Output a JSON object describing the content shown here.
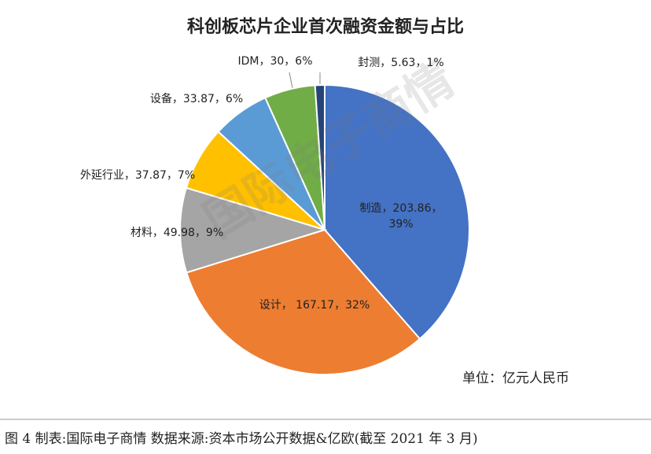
{
  "chart_data": {
    "type": "pie",
    "title": "科创板芯片企业首次融资金额与占比",
    "labels": [
      "制造，203.86，39%",
      "设计， 167.17，32%",
      "材料，49.98，9%",
      "外延行业，37.87，7%",
      "设备，33.87，6%",
      "IDM，30，6%",
      "封测，5.63，1%"
    ],
    "values": [
      203.86,
      167.17,
      49.98,
      37.87,
      33.87,
      30,
      5.63
    ],
    "colors": [
      "#4472c4",
      "#ed7d31",
      "#a5a5a5",
      "#ffc000",
      "#5b9bd5",
      "#70ad47",
      "#264478"
    ],
    "start_angle": 90,
    "direction": "clockwise",
    "unit_note": "单位：亿元人民币",
    "watermark": "国际电子商情"
  },
  "caption": "图 4 制表:国际电子商情 数据来源:资本市场公开数据&亿欧(截至 2021 年 3 月)"
}
